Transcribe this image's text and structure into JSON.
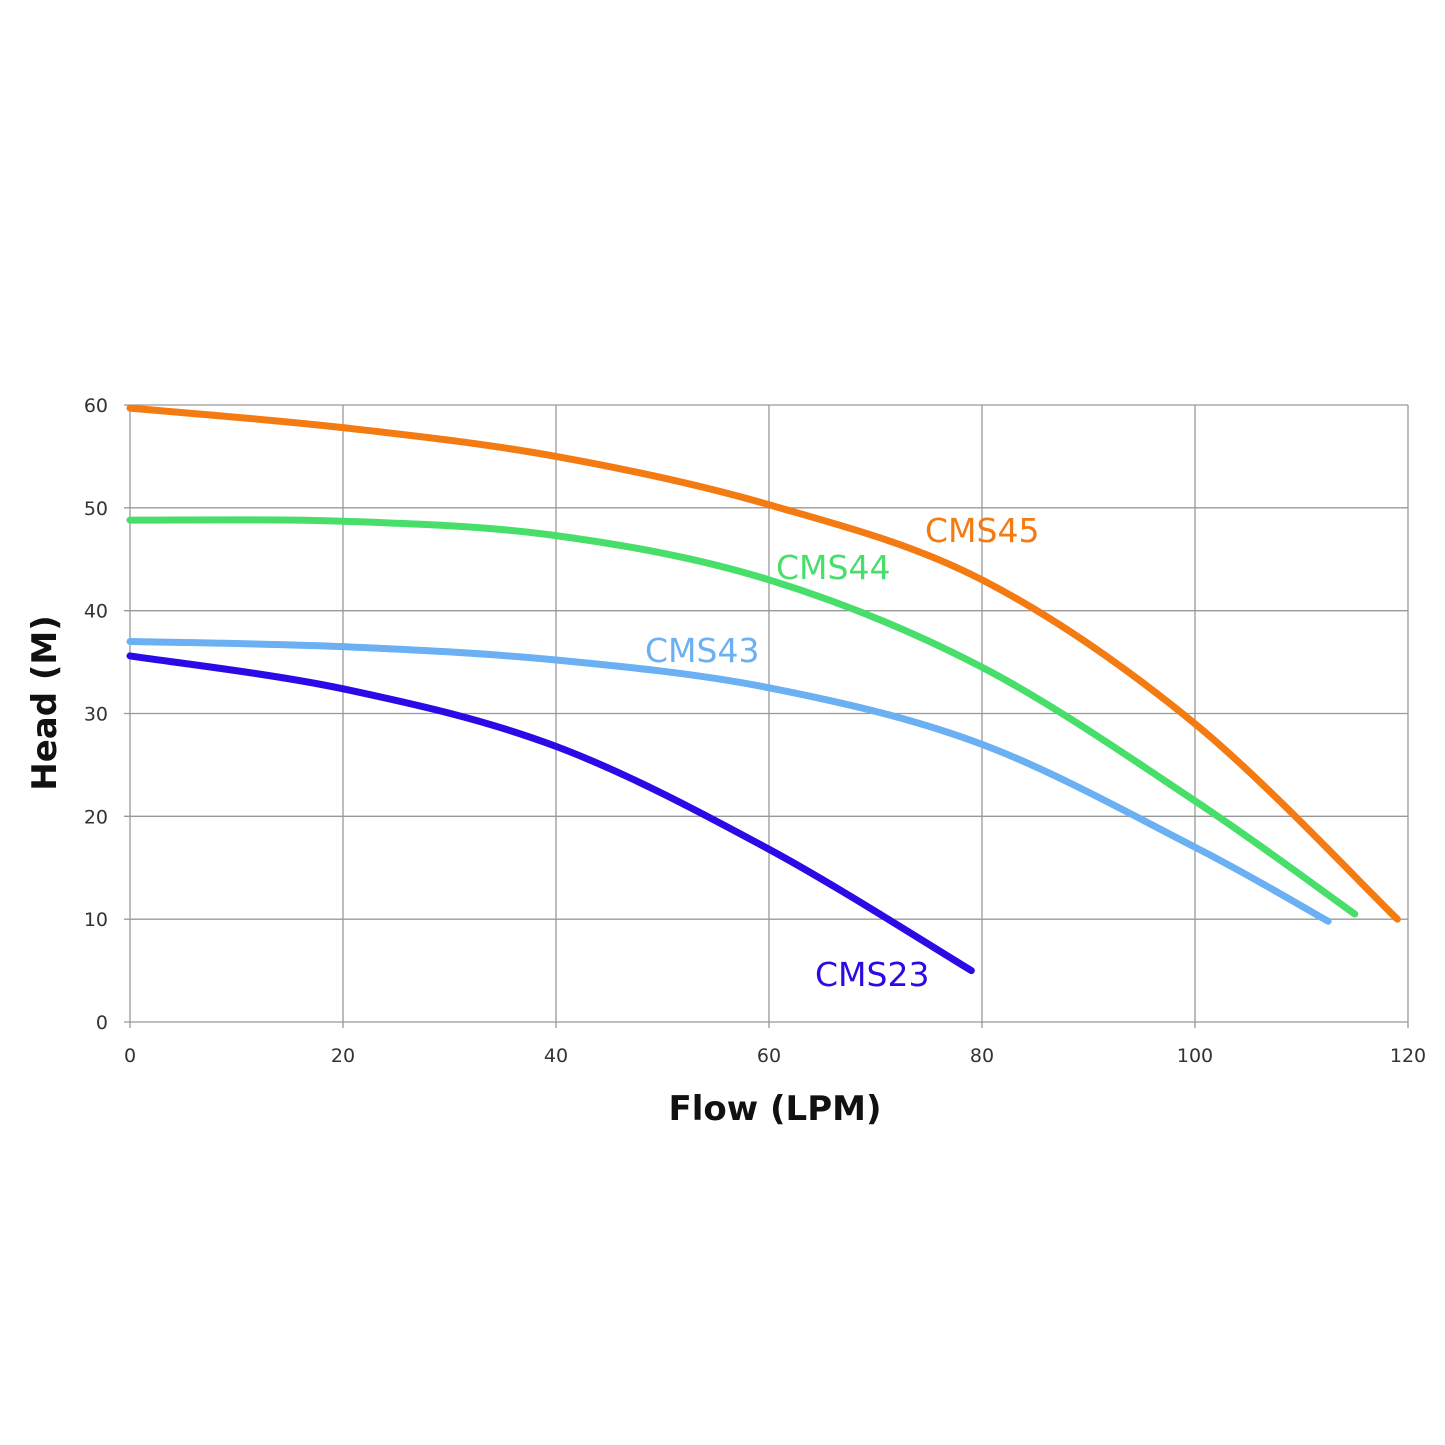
{
  "chart_data": {
    "type": "line",
    "title": "",
    "xlabel": "Flow (LPM)",
    "ylabel": "Head (M)",
    "xlim": [
      0,
      120
    ],
    "ylim": [
      0,
      60
    ],
    "xticks": [
      0,
      20,
      40,
      60,
      80,
      100,
      120
    ],
    "yticks": [
      0,
      10,
      20,
      30,
      40,
      50,
      60
    ],
    "grid": true,
    "legend": "inline labels",
    "series": [
      {
        "name": "CMS45",
        "color": "#f47a12",
        "x": [
          0,
          20,
          40,
          60,
          80,
          100,
          119
        ],
        "y": [
          59.7,
          57.8,
          55.0,
          50.3,
          43.0,
          29.0,
          10.0
        ]
      },
      {
        "name": "CMS44",
        "color": "#48de6a",
        "x": [
          0,
          20,
          40,
          60,
          80,
          100,
          115
        ],
        "y": [
          48.8,
          48.7,
          47.3,
          43.0,
          34.5,
          21.5,
          10.5
        ]
      },
      {
        "name": "CMS43",
        "color": "#6ab0f2",
        "x": [
          0,
          20,
          40,
          60,
          80,
          100,
          112.5
        ],
        "y": [
          37.0,
          36.5,
          35.2,
          32.5,
          27.0,
          17.0,
          9.8
        ]
      },
      {
        "name": "CMS23",
        "color": "#2a0ae6",
        "x": [
          0,
          20,
          40,
          60,
          79
        ],
        "y": [
          35.6,
          32.4,
          26.8,
          16.8,
          5.0
        ]
      }
    ]
  }
}
